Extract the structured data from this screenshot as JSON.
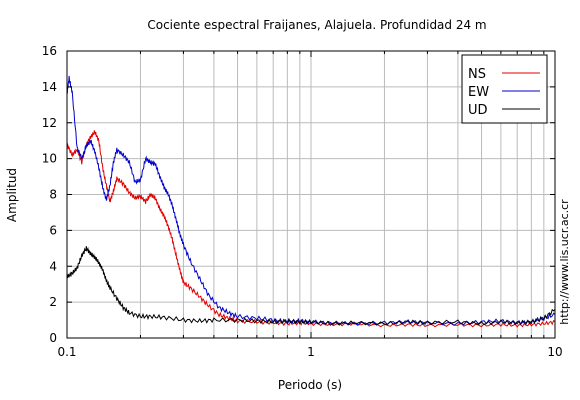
{
  "chart_data": {
    "type": "line",
    "title": "Cociente espectral Fraijanes, Alajuela. Profundidad 24 m",
    "xlabel": "Periodo (s)",
    "ylabel": "Amplitud",
    "xscale": "log",
    "xlim": [
      0.1,
      10
    ],
    "ylim": [
      0,
      16
    ],
    "xticks": [
      0.1,
      1,
      10
    ],
    "xtick_labels": [
      "0.1",
      "1",
      "10"
    ],
    "yticks": [
      0,
      2,
      4,
      6,
      8,
      10,
      12,
      14,
      16
    ],
    "ytick_labels": [
      "0",
      "2",
      "4",
      "6",
      "8",
      "10",
      "12",
      "14",
      "16"
    ],
    "grid": true,
    "legend_position": "top-right",
    "credit": "http://www.lis.ucr.ac.cr",
    "series": [
      {
        "name": "NS",
        "color": "#e00000",
        "x": [
          0.1,
          0.105,
          0.11,
          0.115,
          0.12,
          0.125,
          0.13,
          0.135,
          0.14,
          0.145,
          0.15,
          0.155,
          0.16,
          0.17,
          0.18,
          0.19,
          0.2,
          0.21,
          0.22,
          0.23,
          0.24,
          0.25,
          0.26,
          0.27,
          0.28,
          0.29,
          0.3,
          0.32,
          0.35,
          0.38,
          0.42,
          0.46,
          0.5,
          0.6,
          0.7,
          0.8,
          0.9,
          1.0,
          1.2,
          1.5,
          2.0,
          2.5,
          3.0,
          4.0,
          5.0,
          6.0,
          7.0,
          8.0,
          9.0,
          10.0
        ],
        "y": [
          10.8,
          10.2,
          10.5,
          9.8,
          10.8,
          11.2,
          11.5,
          11.0,
          9.5,
          8.5,
          7.6,
          8.2,
          8.9,
          8.6,
          8.1,
          7.8,
          7.9,
          7.6,
          8.0,
          7.8,
          7.2,
          6.8,
          6.2,
          5.5,
          4.6,
          3.8,
          3.1,
          2.8,
          2.3,
          1.8,
          1.3,
          1.1,
          0.95,
          0.9,
          0.85,
          0.8,
          0.85,
          0.8,
          0.75,
          0.8,
          0.7,
          0.75,
          0.7,
          0.75,
          0.7,
          0.75,
          0.7,
          0.75,
          0.8,
          0.9
        ]
      },
      {
        "name": "EW",
        "color": "#0000cc",
        "x": [
          0.1,
          0.102,
          0.105,
          0.11,
          0.115,
          0.12,
          0.125,
          0.13,
          0.135,
          0.14,
          0.145,
          0.15,
          0.155,
          0.16,
          0.17,
          0.18,
          0.19,
          0.2,
          0.21,
          0.22,
          0.23,
          0.24,
          0.25,
          0.26,
          0.27,
          0.28,
          0.29,
          0.3,
          0.32,
          0.35,
          0.38,
          0.42,
          0.46,
          0.5,
          0.6,
          0.7,
          0.8,
          0.9,
          1.0,
          1.2,
          1.5,
          2.0,
          2.5,
          3.0,
          4.0,
          5.0,
          6.0,
          7.0,
          8.0,
          9.0,
          10.0
        ],
        "y": [
          13.6,
          14.5,
          13.7,
          10.6,
          10.0,
          10.7,
          11.0,
          10.4,
          9.5,
          8.4,
          7.7,
          8.5,
          9.8,
          10.5,
          10.2,
          9.8,
          8.7,
          8.8,
          10.0,
          9.8,
          9.7,
          9.0,
          8.4,
          8.0,
          7.4,
          6.6,
          5.8,
          5.2,
          4.3,
          3.3,
          2.4,
          1.7,
          1.4,
          1.2,
          1.1,
          1.0,
          0.9,
          0.95,
          0.9,
          0.85,
          0.8,
          0.85,
          0.9,
          0.85,
          0.8,
          0.9,
          0.95,
          0.85,
          0.9,
          1.1,
          1.3
        ]
      },
      {
        "name": "UD",
        "color": "#000000",
        "x": [
          0.1,
          0.105,
          0.11,
          0.115,
          0.12,
          0.125,
          0.13,
          0.135,
          0.14,
          0.145,
          0.15,
          0.16,
          0.17,
          0.18,
          0.2,
          0.22,
          0.25,
          0.3,
          0.35,
          0.4,
          0.5,
          0.6,
          0.7,
          0.8,
          0.9,
          1.0,
          1.2,
          1.5,
          2.0,
          2.5,
          3.0,
          4.0,
          5.0,
          6.0,
          7.0,
          8.0,
          9.0,
          10.0
        ],
        "y": [
          3.4,
          3.6,
          3.9,
          4.6,
          5.0,
          4.7,
          4.5,
          4.2,
          3.8,
          3.2,
          2.8,
          2.2,
          1.7,
          1.4,
          1.2,
          1.2,
          1.15,
          1.0,
          0.95,
          1.0,
          1.0,
          0.95,
          0.9,
          0.95,
          0.9,
          0.9,
          0.8,
          0.85,
          0.8,
          0.9,
          0.85,
          0.9,
          0.8,
          0.9,
          0.85,
          0.9,
          1.1,
          1.6
        ]
      }
    ]
  }
}
